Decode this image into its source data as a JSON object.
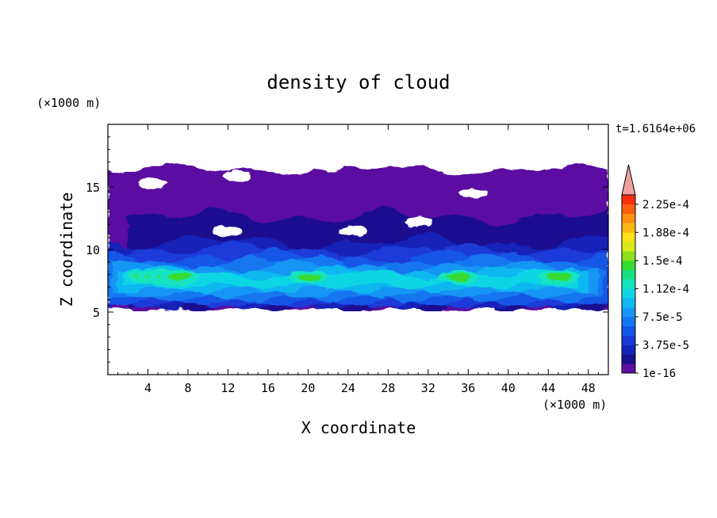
{
  "chart_data": {
    "type": "heatmap",
    "title": "density of cloud",
    "xlabel": "X coordinate",
    "ylabel": "Z coordinate",
    "x_unit_label": "(×1000 m)",
    "y_unit_label": "(×1000 m)",
    "time_label": "t=1.6164e+06",
    "xlim": [
      0,
      50
    ],
    "ylim": [
      0,
      20
    ],
    "x_ticks": [
      4,
      8,
      12,
      16,
      20,
      24,
      28,
      32,
      36,
      40,
      44,
      48
    ],
    "y_ticks": [
      5,
      10,
      15
    ],
    "colorbar": {
      "tick_labels": [
        "1e-16",
        "3.75e-5",
        "7.5e-5",
        "1.12e-4",
        "1.5e-4",
        "1.88e-4",
        "2.25e-4"
      ],
      "levels": [
        {
          "value": 1e-16,
          "color": "#5a10a0"
        },
        {
          "value": 1.25e-05,
          "color": "#1a1090"
        },
        {
          "value": 2.5e-05,
          "color": "#1424b8"
        },
        {
          "value": 3.75e-05,
          "color": "#1a3ad8"
        },
        {
          "value": 5e-05,
          "color": "#1256e6"
        },
        {
          "value": 6.25e-05,
          "color": "#1276f0"
        },
        {
          "value": 7.5e-05,
          "color": "#1896f4"
        },
        {
          "value": 8.75e-05,
          "color": "#10b8f0"
        },
        {
          "value": 0.0001,
          "color": "#10d6e4"
        },
        {
          "value": 0.000112,
          "color": "#14e4c0"
        },
        {
          "value": 0.000125,
          "color": "#18e080"
        },
        {
          "value": 0.000138,
          "color": "#38dc30"
        },
        {
          "value": 0.00015,
          "color": "#8ce020"
        },
        {
          "value": 0.000162,
          "color": "#d8e81a"
        },
        {
          "value": 0.000175,
          "color": "#fce018"
        },
        {
          "value": 0.000188,
          "color": "#fcb814"
        },
        {
          "value": 0.0002,
          "color": "#fc9010"
        },
        {
          "value": 0.000212,
          "color": "#fc6010"
        },
        {
          "value": 0.000225,
          "color": "#f83010"
        }
      ],
      "overflow_color": "#f0a0a0"
    },
    "field_regions": [
      {
        "level": "1e-16",
        "z_range": [
          5.3,
          16.5
        ],
        "x_range": [
          0,
          50
        ],
        "description": "outer cloud envelope"
      },
      {
        "level": "3.75e-5",
        "z_range": [
          5.3,
          10.5
        ],
        "x_range": [
          0,
          50
        ]
      },
      {
        "level": "7.5e-5",
        "z_range": [
          6.0,
          9.5
        ],
        "x_range": [
          0,
          50
        ]
      },
      {
        "level": "1.12e-4",
        "z_range": [
          6.5,
          8.8
        ],
        "x_range": [
          0,
          49
        ]
      },
      {
        "level": "1.5e-4",
        "cores_x": [
          4,
          5,
          6,
          7,
          20,
          35,
          45
        ],
        "z_center": 7.8
      }
    ]
  }
}
